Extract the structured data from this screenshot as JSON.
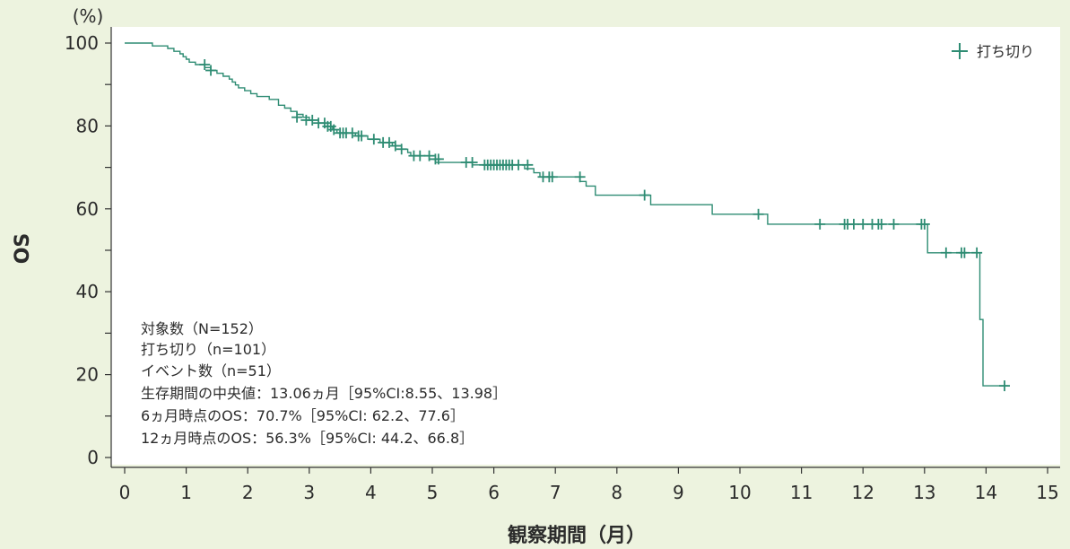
{
  "chart_data": {
    "type": "line",
    "xlabel": "観察期間（月）",
    "ylabel": "OS",
    "yunit": "(%)",
    "xlim": [
      0,
      15
    ],
    "ylim": [
      0,
      100
    ],
    "xticks": [
      0,
      1,
      2,
      3,
      4,
      5,
      6,
      7,
      8,
      9,
      10,
      11,
      12,
      13,
      14,
      15
    ],
    "yticks": [
      0,
      20,
      40,
      60,
      80,
      100
    ],
    "grid": false,
    "legend": {
      "position": "top-right",
      "censor_label": "打ち切り"
    },
    "series": [
      {
        "steps": [
          [
            0,
            100
          ],
          [
            0.45,
            99.3
          ],
          [
            0.7,
            98.7
          ],
          [
            0.8,
            98.0
          ],
          [
            0.9,
            97.4
          ],
          [
            0.95,
            96.7
          ],
          [
            1.0,
            96.1
          ],
          [
            1.05,
            95.4
          ],
          [
            1.15,
            94.8
          ],
          [
            1.3,
            94.1
          ],
          [
            1.4,
            93.4
          ],
          [
            1.5,
            92.7
          ],
          [
            1.6,
            92.0
          ],
          [
            1.7,
            91.3
          ],
          [
            1.75,
            90.6
          ],
          [
            1.8,
            89.9
          ],
          [
            1.85,
            89.2
          ],
          [
            1.95,
            88.5
          ],
          [
            2.05,
            87.8
          ],
          [
            2.15,
            87.1
          ],
          [
            2.35,
            86.4
          ],
          [
            2.5,
            85.0
          ],
          [
            2.6,
            84.3
          ],
          [
            2.7,
            83.5
          ],
          [
            2.8,
            82.8
          ],
          [
            2.9,
            82.1
          ],
          [
            3.0,
            81.4
          ],
          [
            3.15,
            80.7
          ],
          [
            3.3,
            79.9
          ],
          [
            3.38,
            79.1
          ],
          [
            3.45,
            78.3
          ],
          [
            3.75,
            77.6
          ],
          [
            3.95,
            76.8
          ],
          [
            4.15,
            76.0
          ],
          [
            4.35,
            75.2
          ],
          [
            4.5,
            74.4
          ],
          [
            4.6,
            73.6
          ],
          [
            4.65,
            72.8
          ],
          [
            4.95,
            72.0
          ],
          [
            5.05,
            71.2
          ],
          [
            5.65,
            70.6
          ],
          [
            6.5,
            69.7
          ],
          [
            6.65,
            68.7
          ],
          [
            6.75,
            67.7
          ],
          [
            7.4,
            66.6
          ],
          [
            7.5,
            65.5
          ],
          [
            7.65,
            63.3
          ],
          [
            8.55,
            61.0
          ],
          [
            9.55,
            58.7
          ],
          [
            10.45,
            56.3
          ],
          [
            13.05,
            49.4
          ],
          [
            13.9,
            33.3
          ],
          [
            13.95,
            17.3
          ]
        ],
        "end_x": 14.35,
        "censored": [
          [
            1.3,
            94.8
          ],
          [
            1.4,
            93.4
          ],
          [
            2.8,
            82.1
          ],
          [
            2.95,
            81.4
          ],
          [
            3.05,
            81.4
          ],
          [
            3.15,
            80.7
          ],
          [
            3.25,
            80.7
          ],
          [
            3.3,
            79.9
          ],
          [
            3.35,
            79.9
          ],
          [
            3.4,
            79.1
          ],
          [
            3.5,
            78.3
          ],
          [
            3.55,
            78.3
          ],
          [
            3.6,
            78.3
          ],
          [
            3.7,
            78.3
          ],
          [
            3.8,
            77.6
          ],
          [
            3.85,
            77.6
          ],
          [
            4.05,
            76.8
          ],
          [
            4.2,
            76.0
          ],
          [
            4.3,
            76.0
          ],
          [
            4.4,
            75.2
          ],
          [
            4.5,
            74.4
          ],
          [
            4.7,
            72.8
          ],
          [
            4.8,
            72.8
          ],
          [
            4.95,
            72.8
          ],
          [
            5.05,
            72.0
          ],
          [
            5.1,
            72.0
          ],
          [
            5.55,
            71.2
          ],
          [
            5.65,
            71.2
          ],
          [
            5.85,
            70.6
          ],
          [
            5.9,
            70.6
          ],
          [
            5.95,
            70.6
          ],
          [
            6.0,
            70.6
          ],
          [
            6.05,
            70.6
          ],
          [
            6.1,
            70.6
          ],
          [
            6.15,
            70.6
          ],
          [
            6.2,
            70.6
          ],
          [
            6.25,
            70.6
          ],
          [
            6.3,
            70.6
          ],
          [
            6.4,
            70.6
          ],
          [
            6.55,
            70.6
          ],
          [
            6.8,
            67.7
          ],
          [
            6.9,
            67.7
          ],
          [
            6.95,
            67.7
          ],
          [
            7.4,
            67.7
          ],
          [
            8.45,
            63.3
          ],
          [
            10.3,
            58.7
          ],
          [
            11.3,
            56.3
          ],
          [
            11.7,
            56.3
          ],
          [
            11.75,
            56.3
          ],
          [
            11.85,
            56.3
          ],
          [
            12.0,
            56.3
          ],
          [
            12.15,
            56.3
          ],
          [
            12.25,
            56.3
          ],
          [
            12.3,
            56.3
          ],
          [
            12.5,
            56.3
          ],
          [
            12.95,
            56.3
          ],
          [
            13.0,
            56.3
          ],
          [
            13.35,
            49.4
          ],
          [
            13.6,
            49.4
          ],
          [
            13.65,
            49.4
          ],
          [
            13.85,
            49.4
          ],
          [
            14.3,
            17.3
          ]
        ]
      }
    ],
    "annotations": [
      "対象数（N=152）",
      "打ち切り（n=101）",
      "イベント数（n=51）",
      "生存期間の中央値：13.06ヵ月［95%CI:8.55、13.98］",
      "6ヵ月時点のOS：70.7%［95%CI: 62.2、77.6］",
      "12ヵ月時点のOS：56.3%［95%CI: 44.2、66.8］"
    ]
  },
  "colors": {
    "background": "#edf3df",
    "plot_background": "#ffffff",
    "line": "#2e8c73",
    "axis": "#333333",
    "text": "#2b2b2b"
  }
}
